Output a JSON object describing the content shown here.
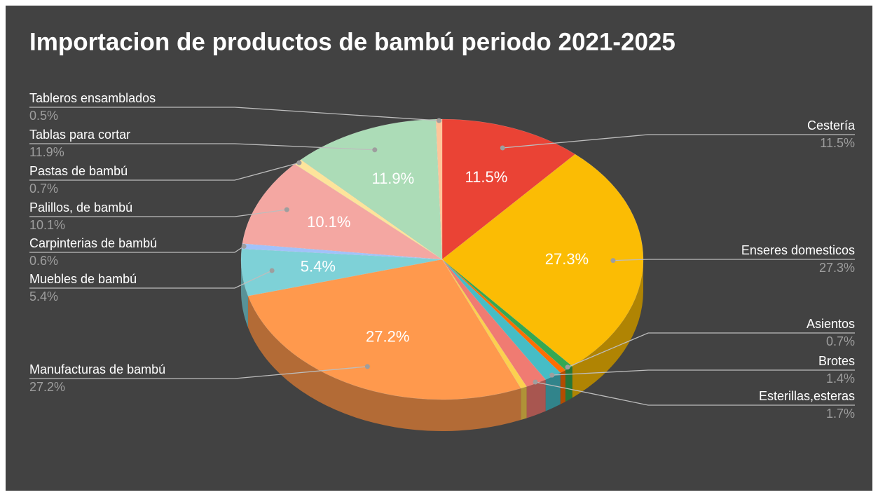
{
  "chart_data": {
    "type": "pie3d",
    "title": "Importacion de productos de bambú periodo 2021-2025",
    "categories": [
      "Cestería",
      "Enseres domesticos",
      "Asientos",
      null,
      "Brotes",
      "Esterillas,esteras",
      null,
      "Manufacturas de bambú",
      "Muebles de bambú",
      "Carpinterias de bambú",
      "Palillos, de bambú",
      "Pastas de bambú",
      "Tablas para cortar",
      "Tableros ensamblados"
    ],
    "values": [
      11.5,
      27.3,
      0.7,
      0.5,
      1.4,
      1.7,
      0.5,
      27.2,
      5.4,
      0.6,
      10.1,
      0.7,
      11.9,
      0.5
    ],
    "value_labels": [
      "11.5%",
      "27.3%",
      "0.7%",
      null,
      "1.4%",
      "1.7%",
      null,
      "27.2%",
      "5.4%",
      "0.6%",
      "10.1%",
      "0.7%",
      "11.9%",
      "0.5%"
    ],
    "colors": [
      "#ea4335",
      "#fbbc04",
      "#34a853",
      "#ff6d01",
      "#46bdc6",
      "#f07b72",
      "#fcd04f",
      "#ff994d",
      "#7ed1d7",
      "#a1c2fa",
      "#f4a7a2",
      "#fde49b",
      "#acdcb7",
      "#ffc599"
    ]
  }
}
